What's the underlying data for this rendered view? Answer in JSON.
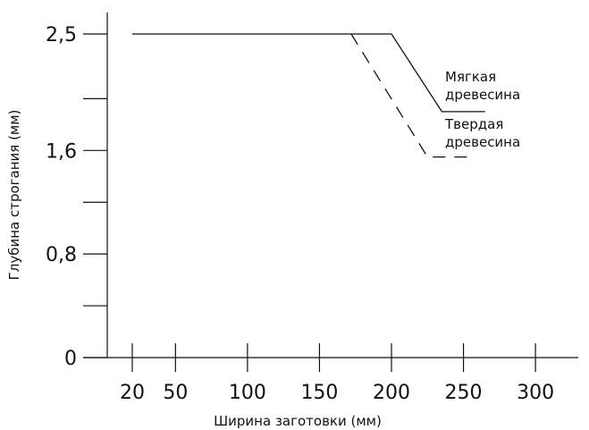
{
  "chart_data": {
    "type": "line",
    "xlabel": "Ширина заготовки (мм)",
    "ylabel": "Глубина строгания (мм)",
    "x_ticks": [
      {
        "value": 20,
        "label": "20"
      },
      {
        "value": 50,
        "label": "50"
      },
      {
        "value": 100,
        "label": "100"
      },
      {
        "value": 150,
        "label": "150"
      },
      {
        "value": 200,
        "label": "200"
      },
      {
        "value": 250,
        "label": "250"
      },
      {
        "value": 300,
        "label": "300"
      }
    ],
    "y_ticks": [
      {
        "value": 0,
        "label": "0"
      },
      {
        "value": 0.4,
        "label": ""
      },
      {
        "value": 0.8,
        "label": "0,8"
      },
      {
        "value": 1.2,
        "label": ""
      },
      {
        "value": 1.6,
        "label": "1,6"
      },
      {
        "value": 2.0,
        "label": ""
      },
      {
        "value": 2.5,
        "label": "2,5"
      }
    ],
    "xlim": [
      0,
      340
    ],
    "ylim": [
      0,
      2.6
    ],
    "grid": false,
    "series": [
      {
        "name": "Мягкая древесина",
        "style": "solid",
        "points": [
          [
            20,
            2.5
          ],
          [
            200,
            2.5
          ],
          [
            235,
            1.9
          ],
          [
            265,
            1.9
          ]
        ]
      },
      {
        "name": "Твердая древесина",
        "style": "dashed",
        "points": [
          [
            172,
            2.5
          ],
          [
            225,
            1.55
          ],
          [
            255,
            1.55
          ]
        ]
      }
    ],
    "series_labels": [
      {
        "lines": [
          "Мягкая",
          "древесина"
        ]
      },
      {
        "lines": [
          "Твердая",
          "древесина"
        ]
      }
    ]
  }
}
